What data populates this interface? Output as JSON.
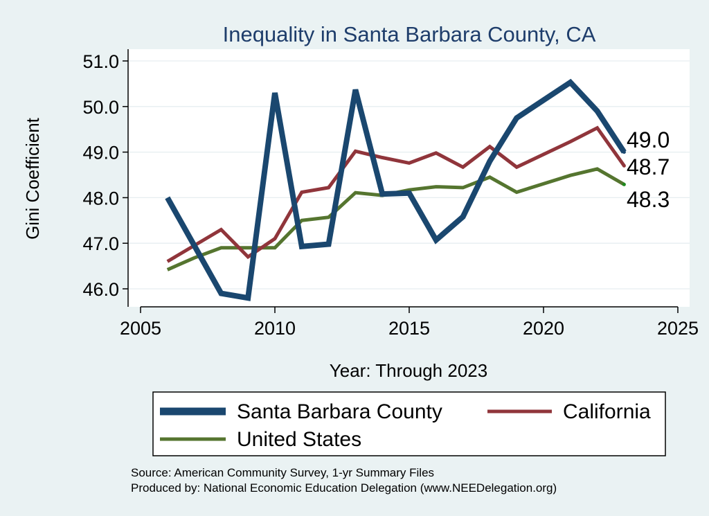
{
  "chart_data": {
    "type": "line",
    "title": "Inequality in Santa Barbara County, CA",
    "xlabel": "Year: Through 2023",
    "ylabel": "Gini Coefficient",
    "xlim": [
      2005,
      2025
    ],
    "ylim": [
      45.8,
      51.2
    ],
    "xticks": [
      2005,
      2010,
      2015,
      2020,
      2025
    ],
    "xtick_labels": [
      "2005",
      "2010",
      "2015",
      "2020",
      "2025"
    ],
    "yticks": [
      46,
      47,
      48,
      49,
      50,
      51
    ],
    "ytick_labels": [
      "46.0",
      "47.0",
      "48.0",
      "49.0",
      "50.0",
      "51.0"
    ],
    "grid": true,
    "legend_position": "bottom",
    "x": [
      2006,
      2007,
      2008,
      2009,
      2010,
      2011,
      2012,
      2013,
      2014,
      2015,
      2016,
      2017,
      2018,
      2019,
      2021,
      2022,
      2023
    ],
    "series": [
      {
        "name": "Santa Barbara County",
        "color": "#1a476f",
        "values": [
          48.0,
          46.95,
          45.9,
          45.8,
          50.3,
          46.93,
          46.98,
          50.37,
          48.08,
          48.1,
          47.07,
          47.58,
          48.8,
          49.75,
          50.53,
          49.9,
          49.0
        ],
        "end_label": "49.0"
      },
      {
        "name": "California",
        "color": "#90353b",
        "values": [
          46.6,
          46.95,
          47.3,
          46.7,
          47.1,
          48.12,
          48.22,
          49.02,
          48.88,
          48.76,
          48.98,
          48.67,
          49.12,
          48.67,
          49.23,
          49.53,
          48.7
        ],
        "end_label": "48.7"
      },
      {
        "name": "United States",
        "color": "#55752f",
        "values": [
          46.42,
          46.68,
          46.9,
          46.9,
          46.9,
          47.5,
          47.57,
          48.11,
          48.05,
          48.17,
          48.24,
          48.22,
          48.45,
          48.12,
          48.49,
          48.63,
          48.29
        ],
        "end_label": "48.3"
      }
    ],
    "notes": [
      "Source: American Community Survey, 1-yr Summary Files",
      "Produced by: National Economic Education Delegation (www.NEEDelegation.org)"
    ]
  }
}
